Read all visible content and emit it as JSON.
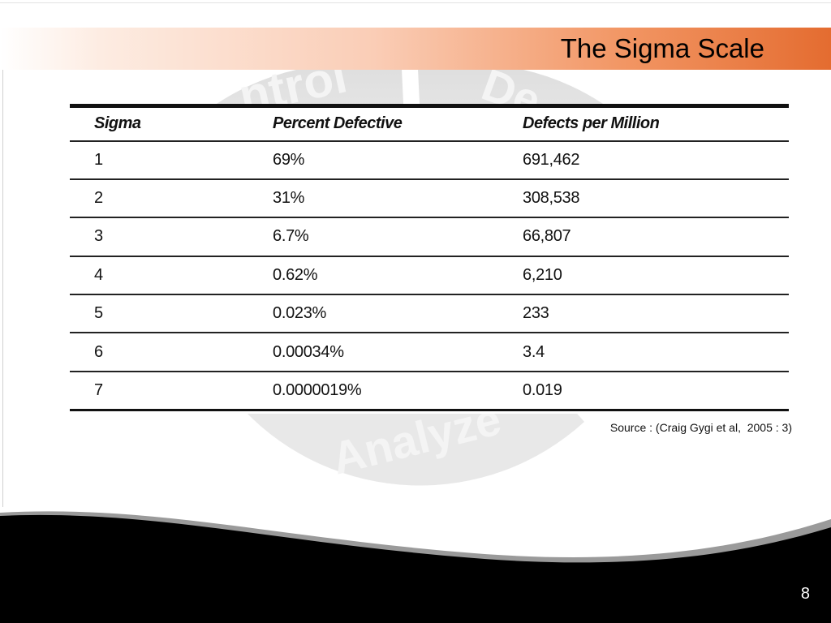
{
  "slide": {
    "title": "The Sigma Scale",
    "page_number": "8",
    "source_note": "Source : (Craig Gygi et al,  2005 : 3)",
    "accent_color": "#e46c30",
    "watermark_words": [
      "ntrol",
      "De",
      "Analyze"
    ]
  },
  "table": {
    "headers": [
      "Sigma",
      "Percent Defective",
      "Defects per Million"
    ],
    "rows": [
      [
        "1",
        "69%",
        "691,462"
      ],
      [
        "2",
        "31%",
        "308,538"
      ],
      [
        "3",
        "6.7%",
        "66,807"
      ],
      [
        "4",
        "0.62%",
        "6,210"
      ],
      [
        "5",
        "0.023%",
        "233"
      ],
      [
        "6",
        "0.00034%",
        "3.4"
      ],
      [
        "7",
        "0.0000019%",
        "0.019"
      ]
    ]
  }
}
